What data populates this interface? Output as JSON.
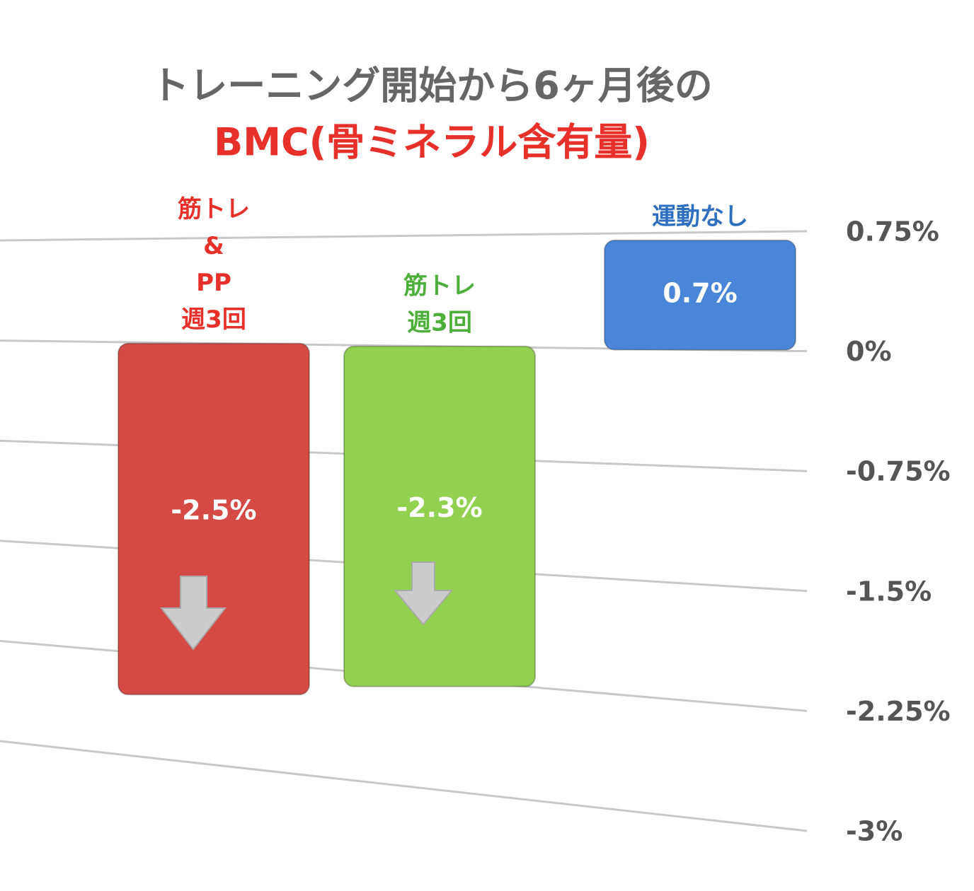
{
  "chart_data": {
    "type": "bar",
    "title": "トレーニング開始から6ヶ月後の",
    "subtitle": "BMC(骨ミネラル含有量)",
    "categories": [
      [
        "筋トレ",
        "&",
        "PP",
        "週3回"
      ],
      [
        "筋トレ",
        "週3回"
      ],
      [
        "運動なし"
      ]
    ],
    "values": [
      -2.5,
      -2.3,
      0.7
    ],
    "value_labels": [
      "-2.5%",
      "-2.3%",
      "0.7%"
    ],
    "colors": [
      "#d64a45",
      "#92d050",
      "#4a86d8"
    ],
    "label_colors": [
      "#e8302a",
      "#4caf3a",
      "#2f6fc0"
    ],
    "ylim": [
      -3,
      0.75
    ],
    "yticks": [
      {
        "value": 0.75,
        "label": "0.75%"
      },
      {
        "value": 0,
        "label": "0%"
      },
      {
        "value": -0.75,
        "label": "-0.75%"
      },
      {
        "value": -1.5,
        "label": "-1.5%"
      },
      {
        "value": -2.25,
        "label": "-2.25%"
      },
      {
        "value": -3,
        "label": "-3%"
      }
    ],
    "grid": true
  }
}
